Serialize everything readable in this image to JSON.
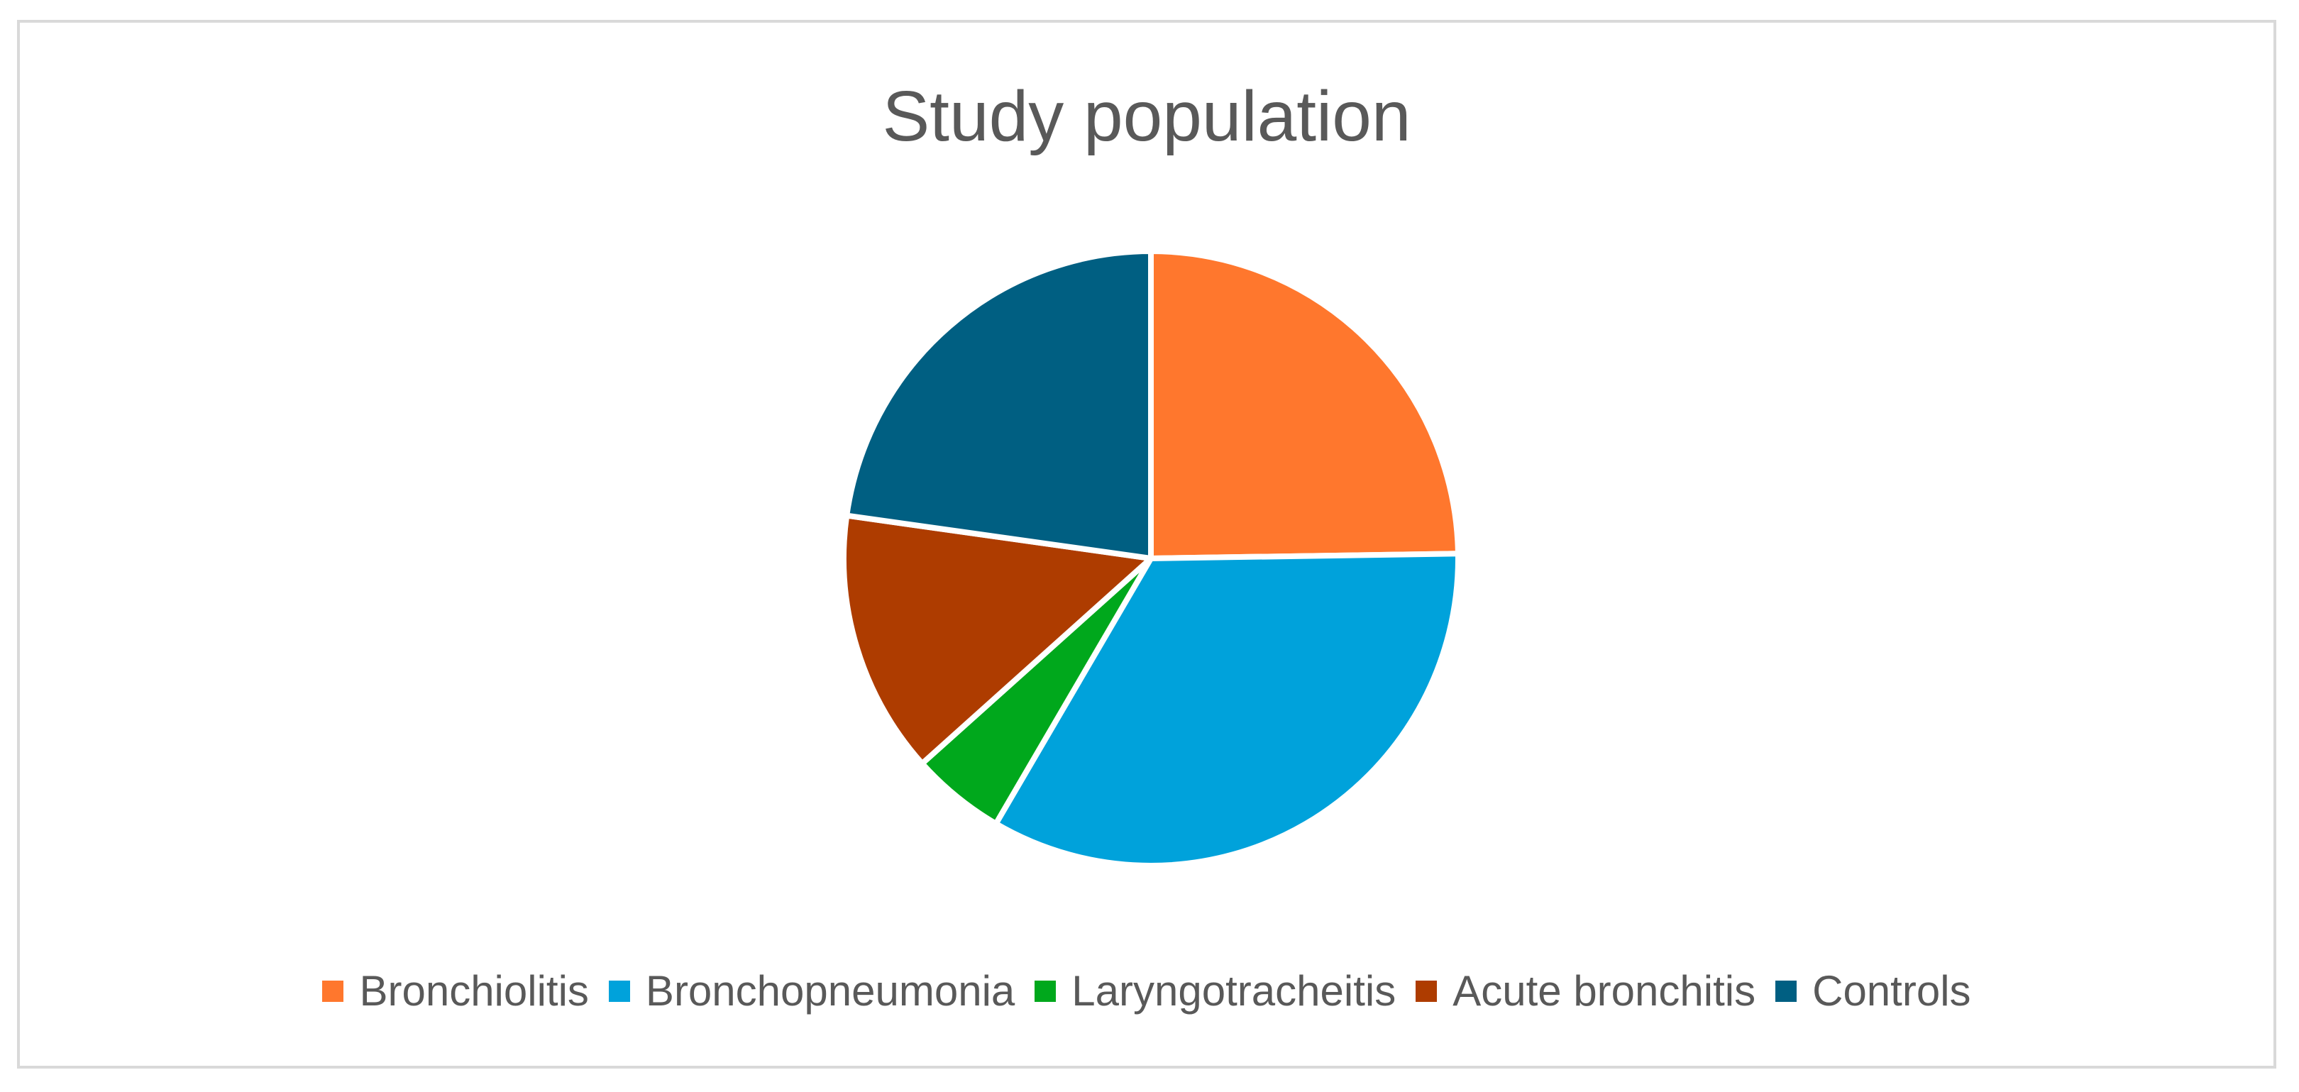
{
  "chart_data": {
    "type": "pie",
    "title": "Study population",
    "categories": [
      "Bronchiolitis",
      "Bronchopneumonia",
      "Laryngotracheitis",
      "Acute bronchitis",
      "Controls"
    ],
    "values": [
      25,
      34,
      5,
      14,
      23
    ],
    "colors": [
      "#ff772d",
      "#00a2db",
      "#00a81c",
      "#ae3c00",
      "#005f82"
    ],
    "legend_position": "bottom",
    "start_angle_deg": 0,
    "direction": "clockwise"
  }
}
